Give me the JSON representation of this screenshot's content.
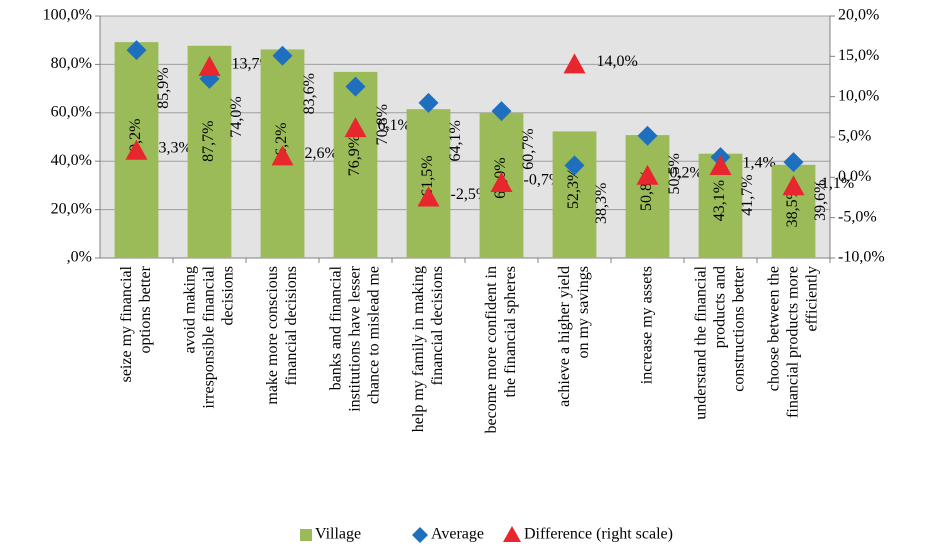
{
  "chart_data": {
    "type": "bar",
    "categories": [
      "seize my financial options better",
      "avoid making irresponsible financial decisions",
      "make more conscious financial decisions",
      "banks and financial institutions have lesser chance to mislead me",
      "help my family in making financial decisions",
      "become more confident in the financial spheres",
      "achieve a higher yield on my savings",
      "increase my assets",
      "understand the financial products and constructions better",
      "choose between the financial products more efficiently"
    ],
    "series": [
      {
        "name": "Village",
        "color": "#9bbb59",
        "values": [
          89.2,
          87.7,
          86.2,
          76.9,
          61.5,
          60.0,
          52.3,
          50.8,
          43.1,
          38.5
        ],
        "value_labels": [
          "89,2%",
          "87,7%",
          "86,2%",
          "76,9%",
          "61,5%",
          "60,0%",
          "52,3%",
          "50,8%",
          "43,1%",
          "38,5%"
        ]
      },
      {
        "name": "Average",
        "color": "#1f6fbf",
        "values": [
          85.9,
          74.0,
          83.6,
          70.8,
          64.1,
          60.7,
          38.3,
          50.5,
          41.7,
          39.6
        ],
        "value_labels": [
          "85,9%",
          "74,0%",
          "83,6%",
          "70,8%",
          "64,1%",
          "60,7%",
          "38,3%",
          "50,5%",
          "41,7%",
          "39,6%"
        ]
      },
      {
        "name": "Difference (right scale)",
        "color": "#e8262d",
        "axis": "y2",
        "values": [
          3.3,
          13.7,
          2.6,
          6.1,
          -2.5,
          -0.7,
          14.0,
          0.2,
          1.4,
          -1.1
        ],
        "value_labels": [
          "3,3%",
          "13,7%",
          "2,6%",
          "6,1%",
          "-2,5%",
          "-0,7%",
          "14,0%",
          "0,2%",
          "1,4%",
          "-1,1%"
        ]
      }
    ],
    "ylim": [
      0,
      100
    ],
    "yticks": [
      {
        "value": 0,
        "label": ",0%"
      },
      {
        "value": 20,
        "label": "20,0%"
      },
      {
        "value": 40,
        "label": "40,0%"
      },
      {
        "value": 60,
        "label": "60,0%"
      },
      {
        "value": 80,
        "label": "80,0%"
      },
      {
        "value": 100,
        "label": "100,0%"
      }
    ],
    "y2lim": [
      -10,
      20
    ],
    "y2ticks": [
      {
        "value": -10,
        "label": "-10,0%"
      },
      {
        "value": -5,
        "label": "-5,0%"
      },
      {
        "value": 0,
        "label": "0,0%"
      },
      {
        "value": 5,
        "label": "5,0%"
      },
      {
        "value": 10,
        "label": "10,0%"
      },
      {
        "value": 15,
        "label": "15,0%"
      },
      {
        "value": 20,
        "label": "20,0%"
      }
    ],
    "grid": true,
    "legend": "bottom"
  }
}
